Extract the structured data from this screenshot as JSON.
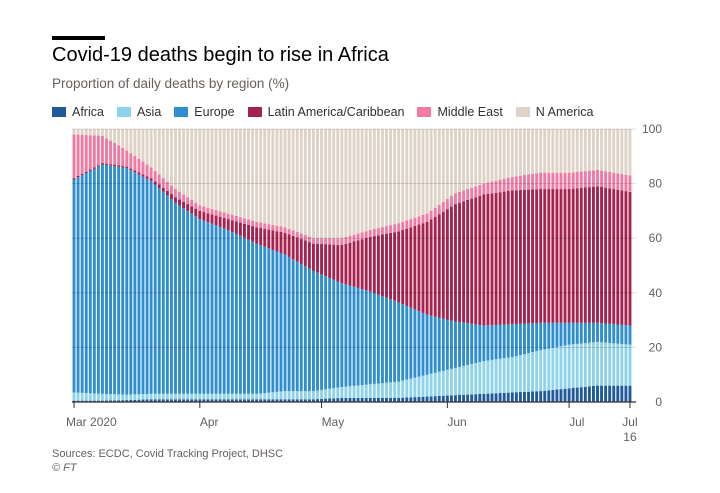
{
  "chart_data": {
    "type": "bar",
    "stacked": true,
    "title": "Covid-19 deaths begin to rise in Africa",
    "subtitle": "Proportion of daily deaths by region (%)",
    "xlabel": "",
    "ylabel": "",
    "ylim": [
      0,
      100
    ],
    "y_ticks": [
      "0",
      "20",
      "40",
      "60",
      "80",
      "100"
    ],
    "y_axis_side": "right",
    "legend_position": "top-left",
    "grid": "horizontal",
    "x_range": [
      "2020-03-01",
      "2020-07-16"
    ],
    "x_ticks": [
      {
        "label": "Mar 2020",
        "date": "2020-03-01"
      },
      {
        "label": "Apr",
        "date": "2020-04-01"
      },
      {
        "label": "May",
        "date": "2020-05-01"
      },
      {
        "label": "Jun",
        "date": "2020-06-01"
      },
      {
        "label": "Jul",
        "date": "2020-07-01"
      },
      {
        "label": "Jul",
        "sublabel": "16",
        "date": "2020-07-16"
      }
    ],
    "series_keys": [
      "africa",
      "asia",
      "europe",
      "latam",
      "mideast",
      "namerica"
    ],
    "series": [
      {
        "key": "africa",
        "name": "Africa",
        "color": "#1f5a9a"
      },
      {
        "key": "asia",
        "name": "Asia",
        "color": "#8fd3ea"
      },
      {
        "key": "europe",
        "name": "Europe",
        "color": "#2e8ed0"
      },
      {
        "key": "latam",
        "name": "Latin America/Caribbean",
        "color": "#a6234f"
      },
      {
        "key": "mideast",
        "name": "Middle East",
        "color": "#f17aa4"
      },
      {
        "key": "namerica",
        "name": "N America",
        "color": "#dfd2c6"
      }
    ],
    "anchors": [
      {
        "date": "2020-03-01",
        "africa": 0.5,
        "asia": 3,
        "europe": 78,
        "latam": 0.5,
        "mideast": 16,
        "namerica": 2
      },
      {
        "date": "2020-03-08",
        "africa": 0.5,
        "asia": 2.5,
        "europe": 84,
        "latam": 0.5,
        "mideast": 10,
        "namerica": 2.5
      },
      {
        "date": "2020-03-14",
        "africa": 0.7,
        "asia": 2,
        "europe": 83,
        "latam": 0.5,
        "mideast": 6,
        "namerica": 7.8
      },
      {
        "date": "2020-03-20",
        "africa": 1,
        "asia": 2,
        "europe": 78,
        "latam": 1,
        "mideast": 4,
        "namerica": 14
      },
      {
        "date": "2020-03-26",
        "africa": 1,
        "asia": 2,
        "europe": 70,
        "latam": 2,
        "mideast": 3,
        "namerica": 22
      },
      {
        "date": "2020-04-01",
        "africa": 1,
        "asia": 2,
        "europe": 64,
        "latam": 3,
        "mideast": 2,
        "namerica": 28
      },
      {
        "date": "2020-04-08",
        "africa": 1,
        "asia": 2,
        "europe": 60,
        "latam": 4,
        "mideast": 2,
        "namerica": 31
      },
      {
        "date": "2020-04-15",
        "africa": 1,
        "asia": 2,
        "europe": 55,
        "latam": 6,
        "mideast": 2,
        "namerica": 34
      },
      {
        "date": "2020-04-22",
        "africa": 1,
        "asia": 3,
        "europe": 50,
        "latam": 8,
        "mideast": 2,
        "namerica": 36
      },
      {
        "date": "2020-04-29",
        "africa": 1,
        "asia": 3,
        "europe": 44,
        "latam": 10,
        "mideast": 2,
        "namerica": 40
      },
      {
        "date": "2020-05-06",
        "africa": 1.5,
        "asia": 4,
        "europe": 38,
        "latam": 14,
        "mideast": 2.5,
        "namerica": 40
      },
      {
        "date": "2020-05-13",
        "africa": 1.5,
        "asia": 5,
        "europe": 34,
        "latam": 20,
        "mideast": 2.5,
        "namerica": 37
      },
      {
        "date": "2020-05-20",
        "africa": 1.5,
        "asia": 6,
        "europe": 29,
        "latam": 26,
        "mideast": 3,
        "namerica": 34.5
      },
      {
        "date": "2020-05-27",
        "africa": 2,
        "asia": 8,
        "europe": 22,
        "latam": 34,
        "mideast": 3,
        "namerica": 31
      },
      {
        "date": "2020-06-03",
        "africa": 2.5,
        "asia": 10,
        "europe": 17,
        "latam": 43,
        "mideast": 4,
        "namerica": 23.5
      },
      {
        "date": "2020-06-10",
        "africa": 3,
        "asia": 12,
        "europe": 13,
        "latam": 48,
        "mideast": 4,
        "namerica": 20
      },
      {
        "date": "2020-06-17",
        "africa": 3.5,
        "asia": 13,
        "europe": 12,
        "latam": 49,
        "mideast": 5,
        "namerica": 17.5
      },
      {
        "date": "2020-06-24",
        "africa": 4,
        "asia": 15,
        "europe": 10,
        "latam": 49,
        "mideast": 6,
        "namerica": 16
      },
      {
        "date": "2020-07-01",
        "africa": 5,
        "asia": 16,
        "europe": 8,
        "latam": 49,
        "mideast": 6,
        "namerica": 16
      },
      {
        "date": "2020-07-08",
        "africa": 6,
        "asia": 16,
        "europe": 7,
        "latam": 50,
        "mideast": 6,
        "namerica": 15
      },
      {
        "date": "2020-07-16",
        "africa": 6,
        "asia": 15,
        "europe": 7,
        "latam": 49,
        "mideast": 6,
        "namerica": 17
      }
    ]
  },
  "source": "Sources: ECDC, Covid Tracking Project, DHSC",
  "credit": "© FT"
}
